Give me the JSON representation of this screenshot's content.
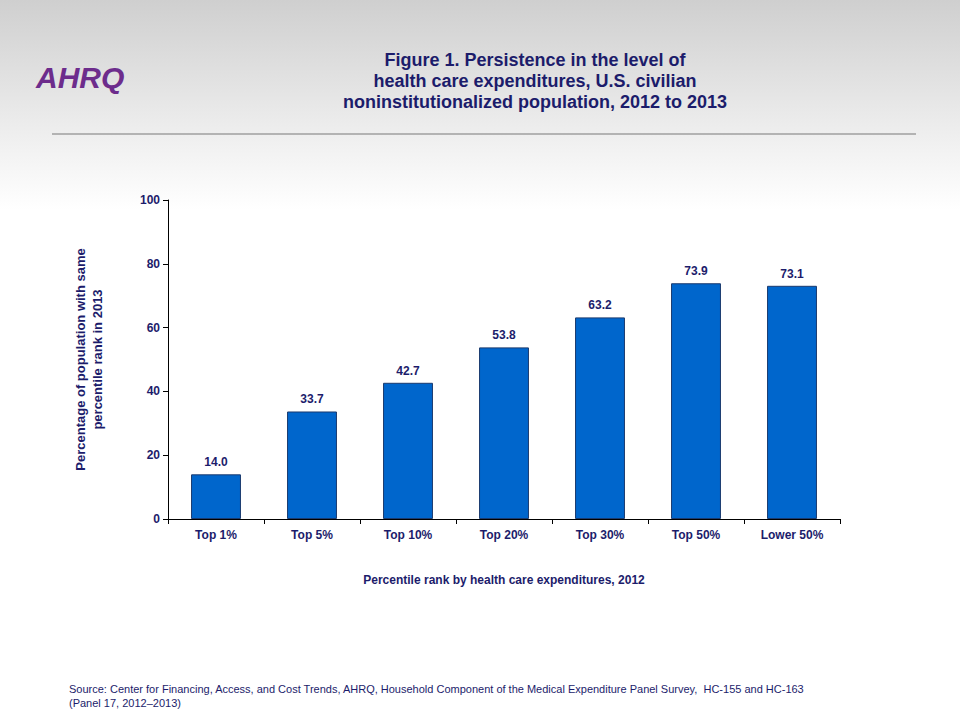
{
  "chart_data": {
    "type": "bar",
    "logo": "AHRQ",
    "title": "Figure 1. Persistence in the level of\nhealth care expenditures, U.S. civilian\nnoninstitutionalized population, 2012 to 2013",
    "x_label": "Percentile rank by health care expenditures, 2012",
    "y_label": "Percentage of population with same\npercentile rank in 2013",
    "categories": [
      "Top 1%",
      "Top 5%",
      "Top 10%",
      "Top 20%",
      "Top 30%",
      "Top 50%",
      "Lower 50%"
    ],
    "values": [
      14.0,
      33.7,
      42.7,
      53.8,
      63.2,
      73.9,
      73.1
    ],
    "value_labels": [
      "14.0",
      "33.7",
      "42.7",
      "53.8",
      "63.2",
      "73.9",
      "73.1"
    ],
    "color": "#0066cc",
    "ylim": [
      0,
      100
    ],
    "yticks": [
      0,
      20,
      40,
      60,
      80,
      100
    ],
    "grid": false,
    "data_labels": true,
    "source": "Source: Center for Financing, Access, and Cost Trends, AHRQ, Household Component of the Medical Expenditure Panel Survey,  HC-155 and HC-163\n(Panel 17, 2012–2013)"
  }
}
